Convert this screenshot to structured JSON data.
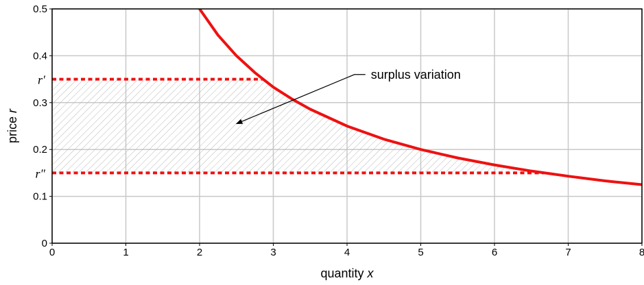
{
  "chart_data": {
    "type": "line",
    "xlabel": "quantity",
    "xlabel_var": "x",
    "ylabel": "price",
    "ylabel_var": "r",
    "xlim": [
      0,
      8
    ],
    "ylim": [
      0,
      0.5
    ],
    "x_ticks": [
      0,
      1,
      2,
      3,
      4,
      5,
      6,
      7,
      8
    ],
    "y_ticks": [
      0,
      0.1,
      0.2,
      0.3,
      0.4,
      0.5
    ],
    "y_tick_labels": [
      "0",
      "0.1",
      "0.2",
      "0.3",
      "0.4",
      "0.5"
    ],
    "grid": true,
    "series": [
      {
        "color": "#ee1111",
        "x": [
          2,
          2.25,
          2.5,
          2.75,
          3,
          3.25,
          3.5,
          4,
          4.5,
          5,
          5.5,
          6,
          6.5,
          7,
          7.5,
          8
        ],
        "y": [
          0.5,
          0.444,
          0.4,
          0.364,
          0.333,
          0.308,
          0.286,
          0.25,
          0.222,
          0.2,
          0.182,
          0.167,
          0.154,
          0.143,
          0.133,
          0.125
        ]
      }
    ],
    "levels": [
      {
        "label": "r′",
        "y": 0.35,
        "x_end": 2.857,
        "color": "#ee1111"
      },
      {
        "label": "r″",
        "y": 0.15,
        "x_end": 6.667,
        "color": "#ee1111"
      }
    ],
    "shaded_region": {
      "y_from": 0.15,
      "y_to": 0.35,
      "pattern": "hatched"
    },
    "annotation": {
      "text": "surplus variation",
      "x": 4.1,
      "y": 0.36,
      "arrow_to_x": 2.5,
      "arrow_to_y": 0.255
    }
  }
}
